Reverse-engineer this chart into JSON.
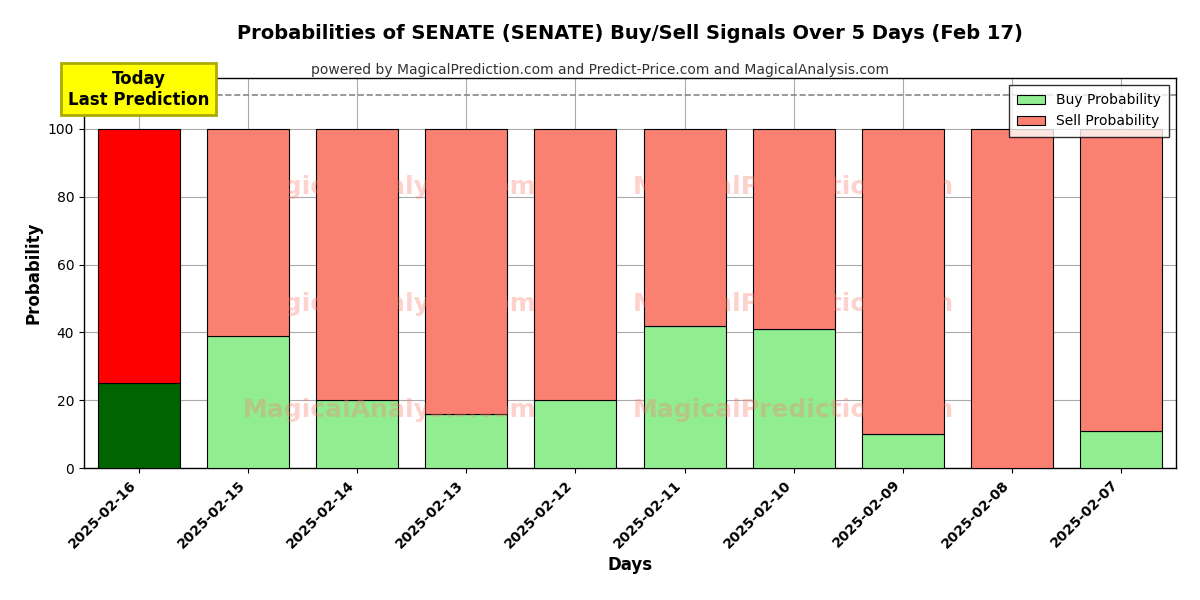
{
  "title": "Probabilities of SENATE (SENATE) Buy/Sell Signals Over 5 Days (Feb 17)",
  "subtitle": "powered by MagicalPrediction.com and Predict-Price.com and MagicalAnalysis.com",
  "xlabel": "Days",
  "ylabel": "Probability",
  "dates": [
    "2025-02-16",
    "2025-02-15",
    "2025-02-14",
    "2025-02-13",
    "2025-02-12",
    "2025-02-11",
    "2025-02-10",
    "2025-02-09",
    "2025-02-08",
    "2025-02-07"
  ],
  "buy_values": [
    25,
    39,
    20,
    16,
    20,
    42,
    41,
    10,
    0,
    11
  ],
  "sell_values": [
    75,
    61,
    80,
    84,
    80,
    58,
    59,
    90,
    100,
    89
  ],
  "today_buy_color": "#006400",
  "today_sell_color": "#ff0000",
  "buy_color": "#90EE90",
  "sell_color": "#FA8072",
  "today_annotation": "Today\nLast Prediction",
  "today_annotation_bg": "#ffff00",
  "dashed_line_y": 110,
  "ylim": [
    0,
    115
  ],
  "yticks": [
    0,
    20,
    40,
    60,
    80,
    100
  ],
  "watermark_color": "#FA8072",
  "watermark_alpha": 0.35,
  "legend_buy_label": "Buy Probability",
  "legend_sell_label": "Sell Probability",
  "background_color": "#ffffff",
  "grid_color": "#aaaaaa",
  "bar_edge_color": "#000000",
  "bar_width": 0.75
}
